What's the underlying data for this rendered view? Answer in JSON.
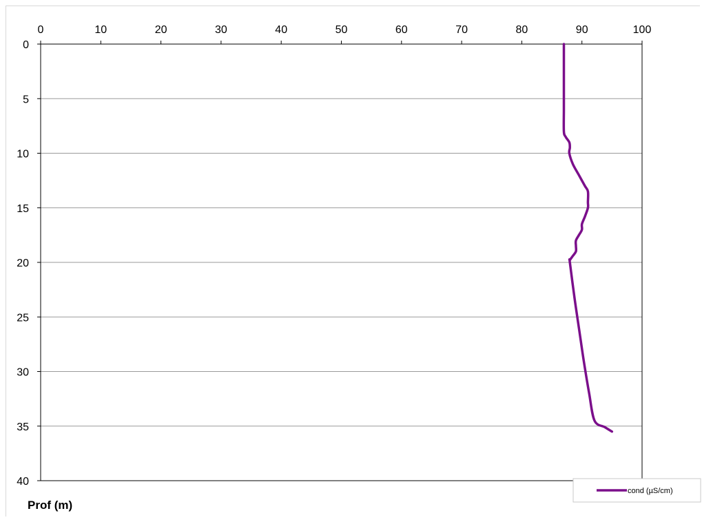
{
  "chart_data": {
    "type": "line",
    "title": "",
    "xlabel": "",
    "ylabel": "Prof (m)",
    "xlim": [
      0,
      100
    ],
    "ylim": [
      0,
      40
    ],
    "y_inverted": true,
    "x_axis_position": "top",
    "x_ticks": [
      "0",
      "10",
      "20",
      "30",
      "40",
      "50",
      "60",
      "70",
      "80",
      "90",
      "100"
    ],
    "y_ticks": [
      "0",
      "5",
      "10",
      "15",
      "20",
      "25",
      "30",
      "35",
      "40"
    ],
    "grid": "horizontal",
    "legend_position": "bottom-right",
    "series": [
      {
        "name": "cond (µS/cm)",
        "color": "#7B0F8B",
        "points": [
          [
            87.0,
            0
          ],
          [
            87.0,
            2
          ],
          [
            87.0,
            4
          ],
          [
            87.0,
            6
          ],
          [
            87.0,
            8
          ],
          [
            87.3,
            8.5
          ],
          [
            87.9,
            9
          ],
          [
            88.0,
            9.5
          ],
          [
            87.9,
            10
          ],
          [
            88.5,
            11
          ],
          [
            89.5,
            12
          ],
          [
            90.5,
            13
          ],
          [
            91.0,
            13.5
          ],
          [
            91.0,
            14.5
          ],
          [
            91.0,
            15
          ],
          [
            90.5,
            15.8
          ],
          [
            90.0,
            16.5
          ],
          [
            90.0,
            17
          ],
          [
            89.5,
            17.5
          ],
          [
            89.0,
            18
          ],
          [
            89.0,
            18.5
          ],
          [
            89.0,
            19
          ],
          [
            88.5,
            19.4
          ],
          [
            88.0,
            19.8
          ],
          [
            88.0,
            20
          ],
          [
            88.7,
            23
          ],
          [
            89.5,
            26
          ],
          [
            90.3,
            29
          ],
          [
            91.2,
            32
          ],
          [
            92.1,
            34.5
          ],
          [
            93.8,
            35.1
          ],
          [
            95.0,
            35.5
          ]
        ]
      }
    ]
  }
}
